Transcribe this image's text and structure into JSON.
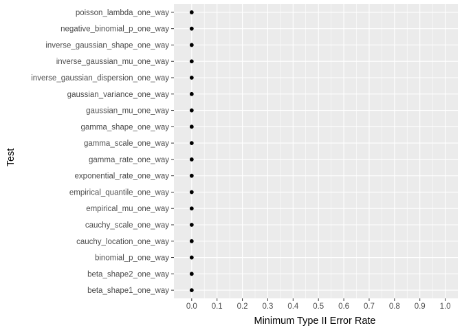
{
  "chart_data": {
    "type": "scatter",
    "title": "",
    "xlabel": "Minimum Type II Error Rate",
    "ylabel": "Test",
    "xlim": [
      -0.07,
      1.05
    ],
    "xticks": [
      0.0,
      0.1,
      0.2,
      0.3,
      0.4,
      0.5,
      0.6,
      0.7,
      0.8,
      0.9,
      1.0
    ],
    "xtick_labels": [
      "0.0",
      "0.1",
      "0.2",
      "0.3",
      "0.4",
      "0.5",
      "0.6",
      "0.7",
      "0.8",
      "0.9",
      "1.0"
    ],
    "grid": true,
    "legend": "none",
    "categories": [
      "poisson_lambda_one_way",
      "negative_binomial_p_one_way",
      "inverse_gaussian_shape_one_way",
      "inverse_gaussian_mu_one_way",
      "inverse_gaussian_dispersion_one_way",
      "gaussian_variance_one_way",
      "gaussian_mu_one_way",
      "gamma_shape_one_way",
      "gamma_scale_one_way",
      "gamma_rate_one_way",
      "exponential_rate_one_way",
      "empirical_quantile_one_way",
      "empirical_mu_one_way",
      "cauchy_scale_one_way",
      "cauchy_location_one_way",
      "binomial_p_one_way",
      "beta_shape2_one_way",
      "beta_shape1_one_way"
    ],
    "values": [
      0.0,
      0.0,
      0.0,
      0.0,
      0.0,
      0.0,
      0.0,
      0.0,
      0.0,
      0.0,
      0.0,
      0.0,
      0.0,
      0.0,
      0.0,
      0.0,
      0.0,
      0.0
    ],
    "colors": {
      "panel_background": "#ebebeb",
      "grid_major": "#ffffff",
      "point": "#000000",
      "tick_text": "#4d4d4d",
      "tick_mark": "#333333"
    }
  }
}
